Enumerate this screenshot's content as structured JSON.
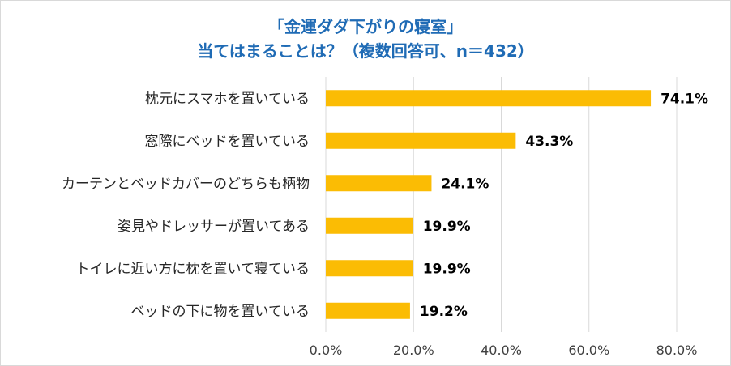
{
  "title": {
    "line1": "「金運ダダ下がりの寝室」",
    "line2": "当てはまることは？（複数回答可、n＝432）"
  },
  "colors": {
    "bar": "#fbbc04",
    "title": "#1f6bb5",
    "grid": "#d9d9d9"
  },
  "chart_data": {
    "type": "bar",
    "orientation": "horizontal",
    "title": "「金運ダダ下がりの寝室」当てはまることは？（複数回答可、n＝432）",
    "categories": [
      "枕元にスマホを置いている",
      "窓際にベッドを置いている",
      "カーテンとベッドカバーのどちらも柄物",
      "姿見やドレッサーが置いてある",
      "トイレに近い方に枕を置いて寝ている",
      "ベッドの下に物を置いている"
    ],
    "values": [
      74.1,
      43.3,
      24.1,
      19.9,
      19.9,
      19.2
    ],
    "value_labels": [
      "74.1%",
      "43.3%",
      "24.1%",
      "19.9%",
      "19.9%",
      "19.2%"
    ],
    "xlim": [
      0,
      80
    ],
    "ticks": [
      0,
      20,
      40,
      60,
      80
    ],
    "tick_labels": [
      "0.0%",
      "20.0%",
      "40.0%",
      "60.0%",
      "80.0%"
    ],
    "grid": true,
    "legend": "none"
  }
}
